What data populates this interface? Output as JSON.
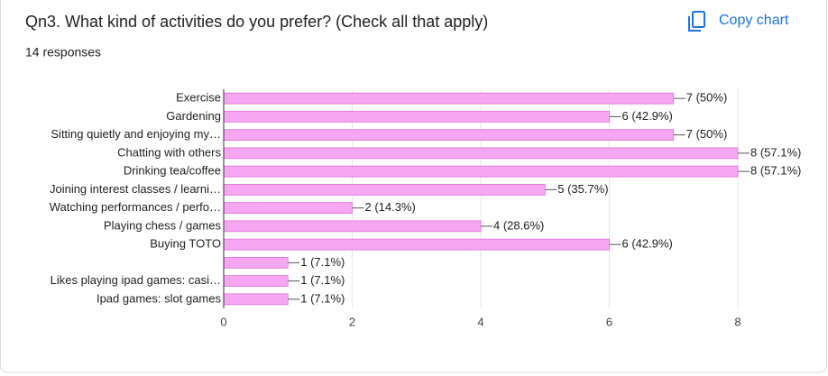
{
  "chart_data": {
    "type": "bar",
    "orientation": "horizontal",
    "title": "Qn3. What kind of activities do you prefer? (Check all that apply)",
    "subtitle": "14 responses",
    "categories": [
      "Exercise",
      "Gardening",
      "Sitting quietly and enjoying my…",
      "Chatting with others",
      "Drinking tea/coffee",
      "Joining interest classes / learni…",
      "Watching performances / perfo…",
      "Playing chess / games",
      "Buying TOTO",
      null,
      "Likes playing ipad games: casi…",
      "Ipad games: slot games"
    ],
    "values": [
      7,
      6,
      7,
      8,
      8,
      5,
      2,
      4,
      6,
      1,
      1,
      1
    ],
    "value_labels": [
      "7 (50%)",
      "6 (42.9%)",
      "7 (50%)",
      "8 (57.1%)",
      "8 (57.1%)",
      "5 (35.7%)",
      "2 (14.3%)",
      "4 (28.6%)",
      "6 (42.9%)",
      "1 (7.1%)",
      "1 (7.1%)",
      "1 (7.1%)"
    ],
    "color": "#f7a6f1",
    "xlim": [
      0,
      8
    ],
    "xticks": [
      0,
      2,
      4,
      6,
      8
    ],
    "grid": true
  },
  "button": "Copy chart"
}
